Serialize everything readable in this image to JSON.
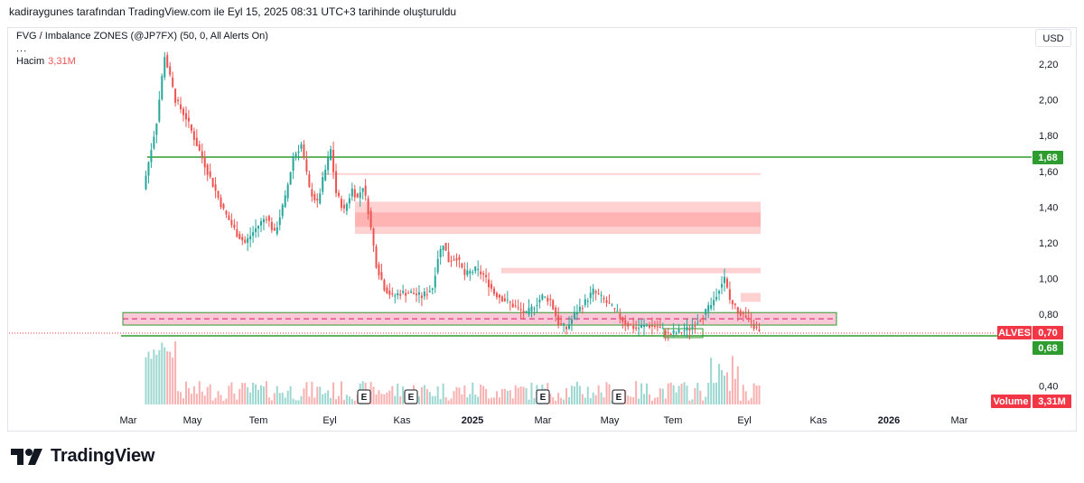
{
  "header": {
    "attribution": "kadiraygunes tarafından TradingView.com ile Eyl 15, 2025 08:31 UTC+3 tarihinde oluşturuldu"
  },
  "legend": {
    "indicator": "FVG / Imbalance ZONES (@JP7FX) (50, 0, All Alerts On)",
    "more": "...",
    "volume_label": "Hacim",
    "volume_value": "3,31M"
  },
  "currency": "USD",
  "footer": {
    "brand": "TradingView"
  },
  "colors": {
    "up": "#26a69a",
    "down": "#ef5350",
    "level": "#2e9c2e",
    "zone_red": "#ff9a9a",
    "zone_pink": "#f8bbd0",
    "price_label": "#f23645"
  },
  "chart_data": {
    "type": "candlestick",
    "symbol": "ALVES",
    "currency": "USD",
    "x_ticks": [
      "Mar",
      "May",
      "Tem",
      "Eyl",
      "Kas",
      "2025",
      "Mar",
      "May",
      "Tem",
      "Eyl",
      "Kas",
      "2026",
      "Mar"
    ],
    "y_ticks": [
      "2,20",
      "2,00",
      "1,80",
      "1,60",
      "1,40",
      "1,20",
      "1,00",
      "0,80",
      "0,40"
    ],
    "y_range": [
      0.3,
      2.3
    ],
    "last_price": {
      "label": "ALVES",
      "value": "0,70"
    },
    "levels": [
      {
        "value": "1,68",
        "price": 1.68
      },
      {
        "value": "0,68",
        "price": 0.68
      }
    ],
    "volume": {
      "label": "Volume",
      "value": "3,31M"
    },
    "events": [
      "E",
      "E",
      "E",
      "E"
    ],
    "price_path": [
      [
        0,
        1.5
      ],
      [
        5,
        1.88
      ],
      [
        8,
        2.25
      ],
      [
        12,
        2.0
      ],
      [
        16,
        1.9
      ],
      [
        20,
        1.75
      ],
      [
        24,
        1.6
      ],
      [
        30,
        1.38
      ],
      [
        35,
        1.25
      ],
      [
        38,
        1.2
      ],
      [
        42,
        1.28
      ],
      [
        46,
        1.35
      ],
      [
        49,
        1.25
      ],
      [
        53,
        1.45
      ],
      [
        56,
        1.68
      ],
      [
        59,
        1.75
      ],
      [
        62,
        1.5
      ],
      [
        65,
        1.42
      ],
      [
        67,
        1.55
      ],
      [
        70,
        1.72
      ],
      [
        72,
        1.48
      ],
      [
        75,
        1.38
      ],
      [
        78,
        1.5
      ],
      [
        80,
        1.45
      ],
      [
        82,
        1.52
      ],
      [
        84,
        1.38
      ],
      [
        87,
        1.08
      ],
      [
        90,
        0.95
      ],
      [
        93,
        0.9
      ],
      [
        96,
        0.92
      ],
      [
        100,
        0.92
      ],
      [
        104,
        0.9
      ],
      [
        108,
        0.95
      ],
      [
        110,
        1.12
      ],
      [
        112,
        1.2
      ],
      [
        114,
        1.1
      ],
      [
        117,
        1.12
      ],
      [
        120,
        1.02
      ],
      [
        124,
        1.05
      ],
      [
        127,
        1.02
      ],
      [
        131,
        0.92
      ],
      [
        135,
        0.88
      ],
      [
        140,
        0.83
      ],
      [
        143,
        0.8
      ],
      [
        146,
        0.85
      ],
      [
        149,
        0.9
      ],
      [
        152,
        0.88
      ],
      [
        155,
        0.75
      ],
      [
        158,
        0.72
      ],
      [
        161,
        0.8
      ],
      [
        165,
        0.87
      ],
      [
        168,
        0.93
      ],
      [
        172,
        0.88
      ],
      [
        176,
        0.82
      ],
      [
        180,
        0.75
      ],
      [
        184,
        0.72
      ],
      [
        188,
        0.74
      ],
      [
        192,
        0.73
      ],
      [
        196,
        0.69
      ],
      [
        200,
        0.7
      ],
      [
        204,
        0.72
      ],
      [
        208,
        0.78
      ],
      [
        212,
        0.85
      ],
      [
        215,
        0.95
      ],
      [
        217,
        1.0
      ],
      [
        219,
        0.88
      ],
      [
        222,
        0.82
      ],
      [
        225,
        0.78
      ],
      [
        228,
        0.73
      ],
      [
        230,
        0.7
      ]
    ],
    "zones": [
      {
        "type": "FVG",
        "color": "red",
        "from": 1.25,
        "to": 1.43
      },
      {
        "type": "FVG",
        "color": "red",
        "from": 1.03,
        "to": 1.06
      },
      {
        "type": "FVG",
        "color": "red",
        "from": 1.58,
        "to": 1.59
      },
      {
        "type": "FVG",
        "color": "red",
        "from": 0.87,
        "to": 0.92
      },
      {
        "type": "zone",
        "color": "pink",
        "from": 0.74,
        "to": 0.81
      }
    ]
  }
}
